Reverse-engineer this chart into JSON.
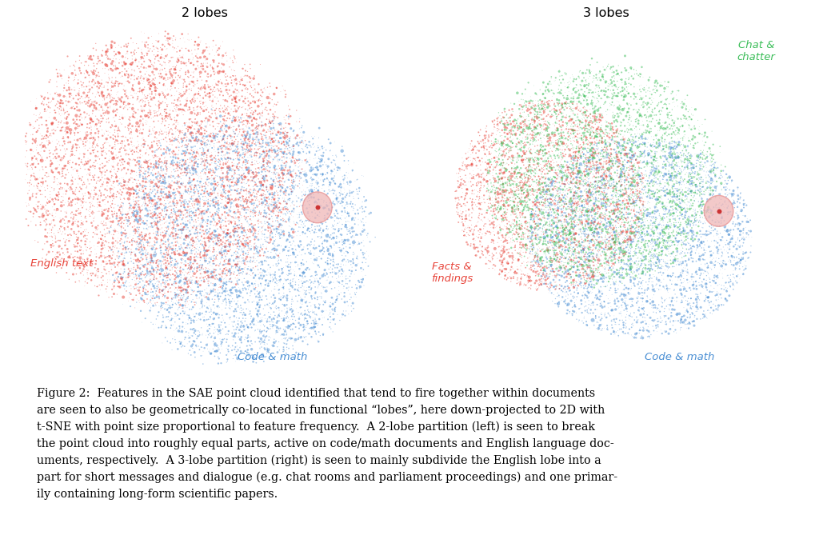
{
  "title_left": "2 lobes",
  "title_right": "3 lobes",
  "label_english": "English text",
  "label_code_left": "Code & math",
  "label_code_right": "Code & math",
  "label_facts": "Facts &\nfindings",
  "label_chat": "Chat &\nchatter",
  "color_red": "#E8443A",
  "color_blue": "#4A8FD4",
  "color_green": "#3DBE5A",
  "color_pink_circle_face": "#F0B8B8",
  "color_pink_circle_edge": "#E89090",
  "color_red_dot": "#CC3333",
  "caption": "Figure 2:  Features in the SAE point cloud identified that tend to fire together within documents\nare seen to also be geometrically co-located in functional “lobes”, here down-projected to 2D with\nt-SNE with point size proportional to feature frequency.  A 2-lobe partition (left) is seen to break\nthe point cloud into roughly equal parts, active on code/math documents and English language doc-\numents, respectively.  A 3-lobe partition (right) is seen to mainly subdivide the English lobe into a\npart for short messages and dialogue (e.g. chat rooms and parliament proceedings) and one primar-\nily containing long-form scientific papers.",
  "bg_color": "#FFFFFF",
  "n_points": 12000,
  "seed": 42
}
